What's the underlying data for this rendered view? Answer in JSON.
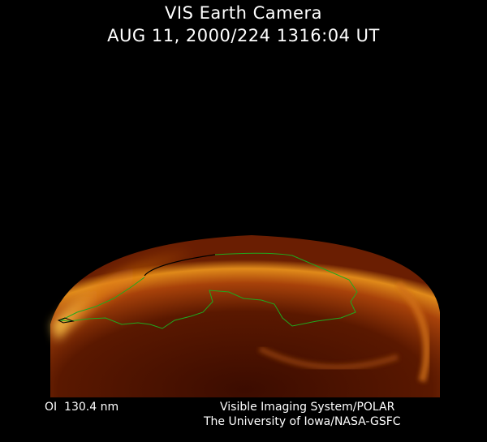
{
  "header": {
    "title": "VIS Earth Camera",
    "timestamp": "AUG 11, 2000/224 1316:04 UT"
  },
  "footer": {
    "band": "OI  130.4 nm",
    "instrument": "Visible Imaging System/POLAR",
    "institution": "The University of Iowa/NASA-GSFC"
  },
  "image": {
    "colors": {
      "glow": "#ffb020",
      "dim": "#6a1e02",
      "outline": "#1faa1f",
      "background": "#000000"
    }
  }
}
